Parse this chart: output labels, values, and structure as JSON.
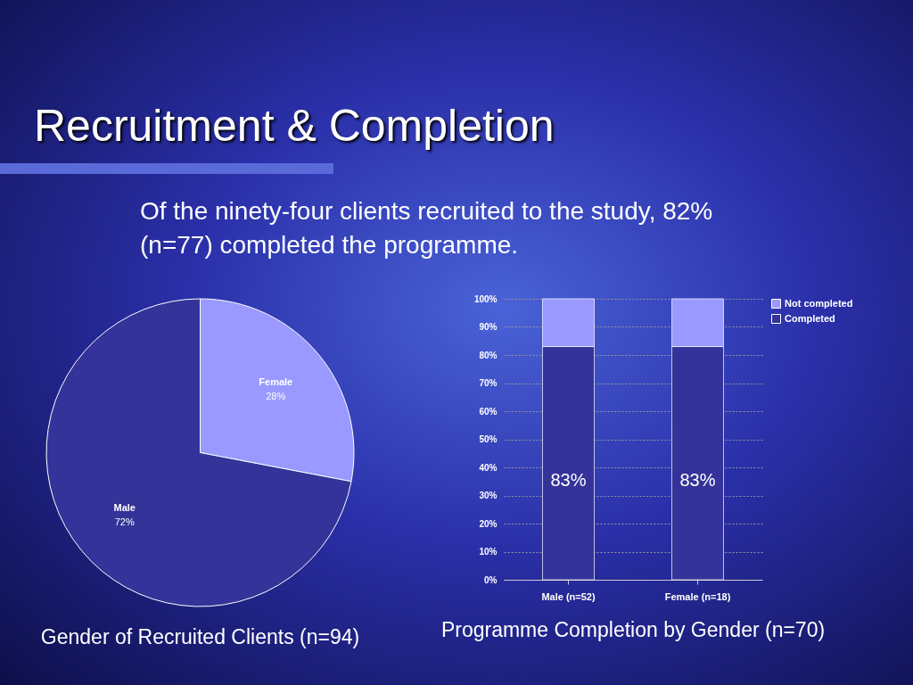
{
  "chart_data": [
    {
      "type": "pie",
      "title": "Gender of Recruited Clients (n=94)",
      "annotations": [
        "Recruitment & Completion",
        "Of the ninety-four clients recruited to the study, 82% (n=77) completed the programme."
      ],
      "categories": [
        "Female",
        "Male"
      ],
      "values": [
        28,
        72
      ],
      "colors": [
        "#9999ff",
        "#333399"
      ],
      "value_labels": [
        "28%",
        "72%"
      ]
    },
    {
      "type": "bar",
      "title": "Programme Completion by Gender (n=70)",
      "categories": [
        "Male (n=52)",
        "Female (n=18)"
      ],
      "stacked": true,
      "series": [
        {
          "name": "Completed",
          "color": "#333399",
          "values": [
            83,
            83
          ],
          "value_labels": [
            "83%",
            "83%"
          ]
        },
        {
          "name": "Not completed",
          "color": "#9999ff",
          "values": [
            17,
            17
          ]
        }
      ],
      "ylim": [
        0,
        100
      ],
      "yticks": [
        {
          "value": 0,
          "label": "0%"
        },
        {
          "value": 10,
          "label": "10%"
        },
        {
          "value": 20,
          "label": "20%"
        },
        {
          "value": 30,
          "label": "30%"
        },
        {
          "value": 40,
          "label": "40%"
        },
        {
          "value": 50,
          "label": "50%"
        },
        {
          "value": 60,
          "label": "60%"
        },
        {
          "value": 70,
          "label": "70%"
        },
        {
          "value": 80,
          "label": "80%"
        },
        {
          "value": 90,
          "label": "90%"
        },
        {
          "value": 100,
          "label": "100%"
        }
      ],
      "grid": "y",
      "legend": "top right"
    }
  ]
}
